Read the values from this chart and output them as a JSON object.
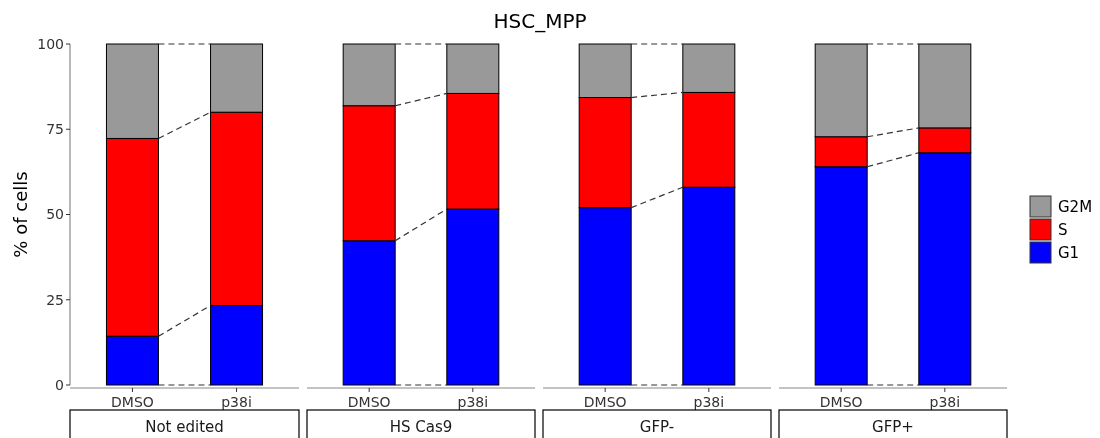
{
  "chart_data": [
    {
      "type": "other",
      "title": "HSC_MPP"
    },
    {
      "type": "bar",
      "ylabel": "% of cells",
      "subtitle": "Not edited",
      "categories": [
        "DMSO",
        "p38i"
      ],
      "stacked": true,
      "ylim": [
        0,
        100
      ],
      "yticks": [
        0,
        25,
        50,
        75,
        100
      ],
      "grid": false,
      "legend": false,
      "series": [
        {
          "color": "#0000ff",
          "values": [
            14.3,
            23.3
          ]
        },
        {
          "color": "#ff0000",
          "values": [
            58,
            56.7
          ]
        },
        {
          "color": "#999999",
          "values": [
            27.7,
            20
          ]
        }
      ]
    },
    {
      "type": "bar",
      "subtitle": "HS Cas9",
      "categories": [
        "DMSO",
        "p38i"
      ],
      "stacked": true,
      "ylim": [
        0,
        100
      ],
      "tick_labels": "x",
      "grid": false,
      "legend": false,
      "series": [
        {
          "color": "#0000ff",
          "values": [
            42.3,
            51.6
          ]
        },
        {
          "color": "#ff0000",
          "values": [
            39.6,
            33.9
          ]
        },
        {
          "color": "#999999",
          "values": [
            18.1,
            14.5
          ]
        }
      ]
    },
    {
      "type": "bar",
      "subtitle": "GFP-",
      "categories": [
        "DMSO",
        "p38i"
      ],
      "stacked": true,
      "ylim": [
        0,
        100
      ],
      "tick_labels": "x",
      "grid": false,
      "legend": false,
      "series": [
        {
          "color": "#0000ff",
          "values": [
            52,
            58
          ]
        },
        {
          "color": "#ff0000",
          "values": [
            32.3,
            27.8
          ]
        },
        {
          "color": "#999999",
          "values": [
            15.7,
            14.2
          ]
        }
      ]
    },
    {
      "type": "bar",
      "subtitle": "GFP+",
      "categories": [
        "DMSO",
        "p38i"
      ],
      "stacked": true,
      "ylim": [
        0,
        100
      ],
      "tick_labels": "x",
      "grid": false,
      "legend": "right",
      "series": [
        {
          "name": "G1",
          "color": "#0000ff",
          "values": [
            64,
            68.1
          ]
        },
        {
          "name": "S",
          "color": "#ff0000",
          "values": [
            8.8,
            7.3
          ]
        },
        {
          "name": "G2M",
          "color": "#999999",
          "values": [
            27.2,
            24.6
          ]
        }
      ]
    }
  ]
}
